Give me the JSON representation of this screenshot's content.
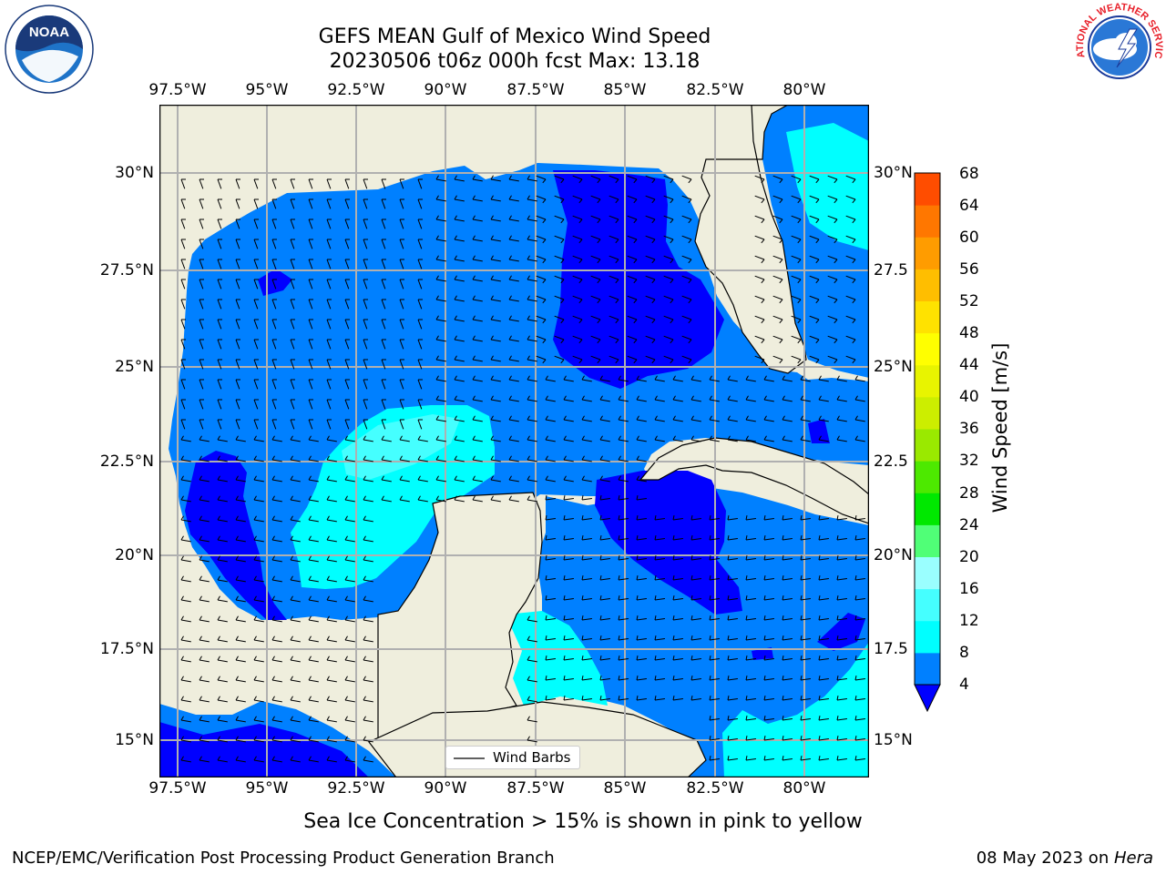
{
  "title": {
    "line1": "GEFS MEAN Gulf of Mexico Wind Speed",
    "line2": "20230506 t06z 000h fcst   Max: 13.18"
  },
  "logos": {
    "noaa_text": "NOAA",
    "noaa_ring_text": "NATIONAL OCEANIC AND ATMOSPHERIC ADMINISTRATION",
    "noaa_ring_bottom": "U.S. DEPARTMENT OF COMMERCE",
    "nws_ring_text": "NATIONAL WEATHER SERVICE"
  },
  "map": {
    "lon_labels": [
      "97.5°W",
      "95°W",
      "92.5°W",
      "90°W",
      "87.5°W",
      "85°W",
      "82.5°W",
      "80°W"
    ],
    "lat_labels_left": [
      "30°N",
      "27.5°N",
      "25°N",
      "22.5°N",
      "20°N",
      "17.5°N",
      "15°N"
    ],
    "lat_labels_right": [
      "30°N",
      "27.5",
      "25°N",
      "22.5",
      "20°N",
      "17.5",
      "15°N"
    ],
    "lon_range": [
      -98,
      -78
    ],
    "lat_range": [
      14,
      31.7
    ],
    "legend_label": "Wind Barbs",
    "colors": {
      "land": "#efeedd",
      "grid": "#b0b0b0"
    }
  },
  "colorbar": {
    "title": "Wind Speed [m/s]",
    "levels": [
      "4",
      "8",
      "12",
      "16",
      "20",
      "24",
      "28",
      "32",
      "36",
      "40",
      "44",
      "48",
      "52",
      "56",
      "60",
      "64",
      "68"
    ],
    "colors": [
      "#0080ff",
      "#00ffff",
      "#45ffff",
      "#9affff",
      "#50ff77",
      "#00e800",
      "#4de900",
      "#9ae900",
      "#ccee00",
      "#e8f400",
      "#ffff00",
      "#ffe200",
      "#ffbe00",
      "#ff9c00",
      "#ff7700",
      "#ff4d00",
      "#ff0000"
    ],
    "under_color": "#0000ff"
  },
  "notes": {
    "sea_ice": "Sea Ice Concentration > 15% is shown in pink to yellow",
    "footer_left": "NCEP/EMC/Verification Post Processing Product Generation Branch",
    "footer_date": "08 May 2023 on ",
    "footer_machine": "Hera"
  }
}
